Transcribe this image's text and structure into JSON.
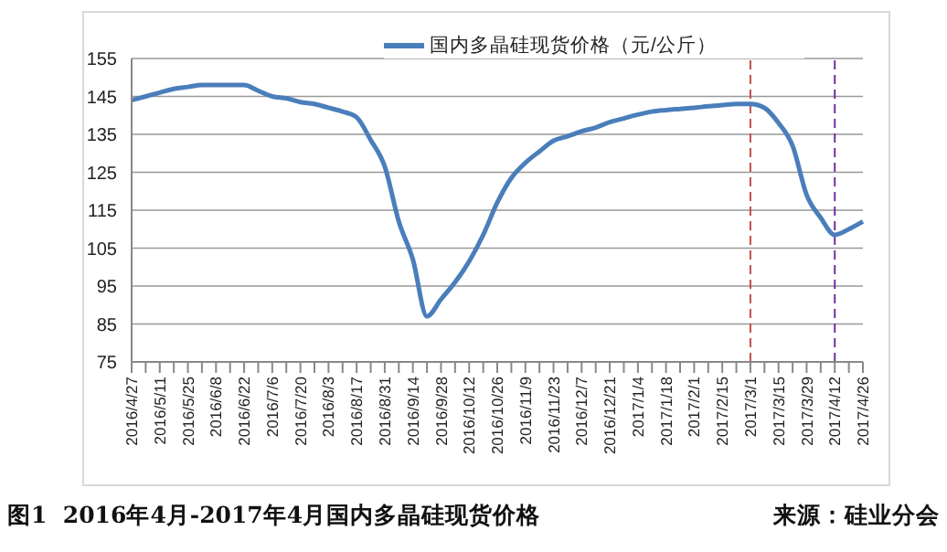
{
  "chart_data": {
    "type": "line",
    "categories": [
      "2016/4/27",
      null,
      "2016/5/11",
      null,
      "2016/5/25",
      null,
      "2016/6/8",
      null,
      "2016/6/22",
      null,
      "2016/7/6",
      null,
      "2016/7/20",
      null,
      "2016/8/3",
      null,
      "2016/8/17",
      null,
      "2016/8/31",
      null,
      "2016/9/14",
      null,
      "2016/9/28",
      null,
      "2016/10/12",
      null,
      "2016/10/26",
      null,
      "2016/11/9",
      null,
      "2016/11/23",
      null,
      "2016/12/7",
      null,
      "2016/12/21",
      null,
      "2017/1/4",
      null,
      "2017/1/18",
      null,
      "2017/2/1",
      null,
      "2017/2/15",
      null,
      "2017/3/1",
      null,
      "2017/3/15",
      null,
      "2017/3/29",
      null,
      "2017/4/12",
      null,
      "2017/4/26"
    ],
    "series": [
      {
        "name": "国内多晶硅现货价格（元/公斤）",
        "color": "#4a7ebb",
        "values": [
          144,
          145,
          146,
          147,
          147.5,
          148,
          148,
          148,
          148,
          146.5,
          145,
          144.5,
          143.5,
          143,
          142,
          141,
          139.5,
          133.5,
          126.5,
          112,
          102,
          87,
          91.5,
          96,
          101.5,
          108.5,
          117,
          123.5,
          127.5,
          130.5,
          133.3,
          134.5,
          135.8,
          136.8,
          138.2,
          139.2,
          140.2,
          141,
          141.4,
          141.7,
          142,
          142.4,
          142.7,
          143,
          143,
          142,
          138,
          132,
          119,
          113,
          108.5,
          110,
          112
        ]
      }
    ],
    "ylim": [
      75,
      155
    ],
    "yticks": [
      75,
      85,
      95,
      105,
      115,
      125,
      135,
      145,
      155
    ],
    "grid": "y",
    "legend": "top",
    "marker": "none",
    "line_style": "solid",
    "ref_lines": [
      {
        "axis": "x",
        "value": "2017/3/1",
        "color": "#c0504d",
        "line_style": "dashed"
      },
      {
        "axis": "x",
        "value": "2017/4/12",
        "color": "#7030a0",
        "line_style": "dashed"
      }
    ],
    "annotations": [
      "图1  2016年4月-2017年4月国内多晶硅现货价格",
      "来源：硅业分会"
    ]
  }
}
